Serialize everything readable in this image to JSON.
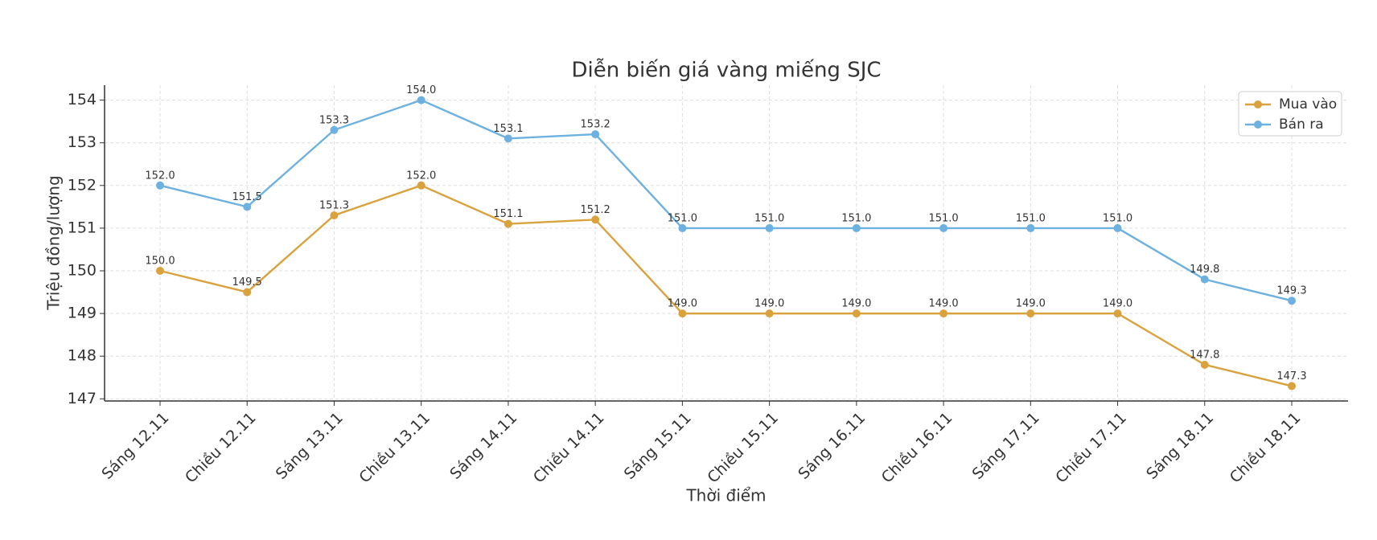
{
  "chart_data": {
    "type": "line",
    "title": "Diễn biến giá vàng miếng SJC",
    "x_label": "Thời điểm",
    "y_label": "Triệu đồng/lượng",
    "categories": [
      "Sáng 12.11",
      "Chiều 12.11",
      "Sáng 13.11",
      "Chiều 13.11",
      "Sáng 14.11",
      "Chiều 14.11",
      "Sáng 15.11",
      "Chiều 15.11",
      "Sáng 16.11",
      "Chiều 16.11",
      "Sáng 17.11",
      "Chiều 17.11",
      "Sáng 18.11",
      "Chiều 18.11"
    ],
    "series": [
      {
        "name": "Mua vào",
        "color": "#d9a23d",
        "values": [
          150.0,
          149.5,
          151.3,
          152.0,
          151.1,
          151.2,
          149.0,
          149.0,
          149.0,
          149.0,
          149.0,
          149.0,
          147.8,
          147.3
        ],
        "value_labels": [
          "150.0",
          "149.5",
          "151.3",
          "152.0",
          "151.1",
          "151.2",
          "149.0",
          "149.0",
          "149.0",
          "149.0",
          "149.0",
          "149.0",
          "147.8",
          "147.3"
        ]
      },
      {
        "name": "Bán ra",
        "color": "#6cb1df",
        "values": [
          152.0,
          151.5,
          153.3,
          154.0,
          153.1,
          153.2,
          151.0,
          151.0,
          151.0,
          151.0,
          151.0,
          151.0,
          149.8,
          149.3
        ],
        "value_labels": [
          "152.0",
          "151.5",
          "153.3",
          "154.0",
          "153.1",
          "153.2",
          "151.0",
          "151.0",
          "151.0",
          "151.0",
          "151.0",
          "151.0",
          "149.8",
          "149.3"
        ]
      }
    ],
    "ylim": [
      146.95,
      154.35
    ],
    "yticks": [
      147,
      148,
      149,
      150,
      151,
      152,
      153,
      154
    ],
    "grid": true,
    "legend": "upper right"
  }
}
